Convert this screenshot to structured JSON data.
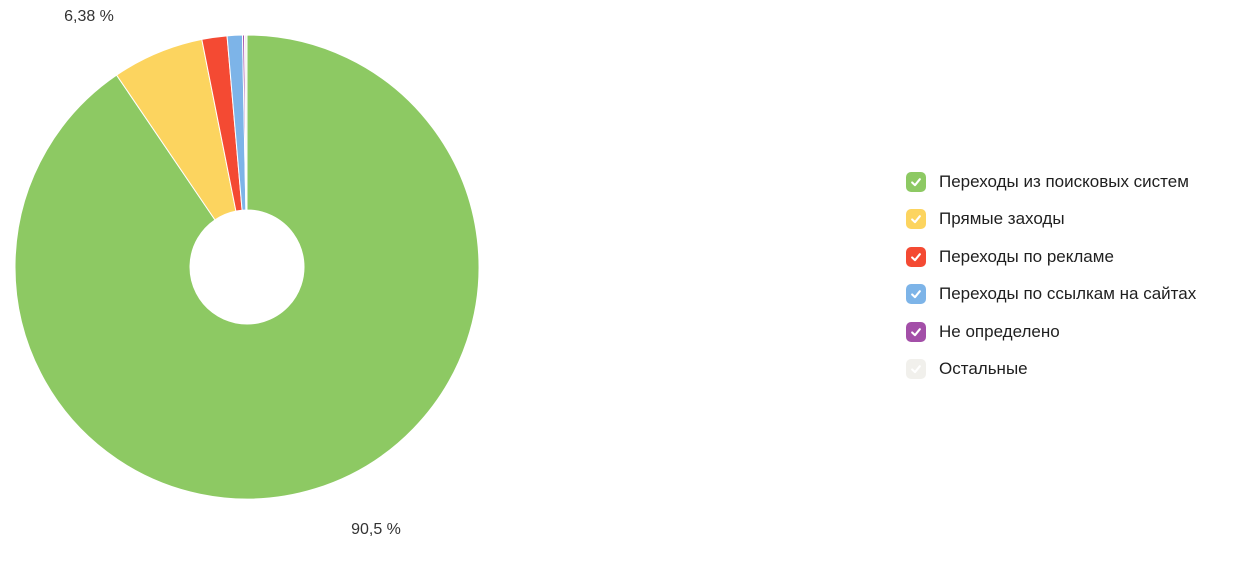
{
  "chart_data": {
    "type": "pie",
    "variant": "donut",
    "title": "",
    "legend_position": "right",
    "start_angle_deg": 0,
    "direction": "clockwise",
    "background": "#ffffff",
    "label_color": "#333333",
    "slices": [
      {
        "label": "Переходы из поисковых систем",
        "value": 90.5,
        "display_label": "90,5 %",
        "color": "#8DC963",
        "checked": true
      },
      {
        "label": "Прямые заходы",
        "value": 6.38,
        "display_label": "6,38 %",
        "color": "#FCD45F",
        "checked": true
      },
      {
        "label": "Переходы по рекламе",
        "value": 1.75,
        "display_label": "",
        "color": "#F44A33",
        "checked": true
      },
      {
        "label": "Переходы по ссылкам на сайтах",
        "value": 1.06,
        "display_label": "",
        "color": "#7DB4E8",
        "checked": true
      },
      {
        "label": "Не определено",
        "value": 0.14,
        "display_label": "",
        "color": "#A34FA8",
        "checked": true
      },
      {
        "label": "Остальные",
        "value": 0.17,
        "display_label": "",
        "color": "#F1F0EC",
        "checked": true
      }
    ]
  }
}
